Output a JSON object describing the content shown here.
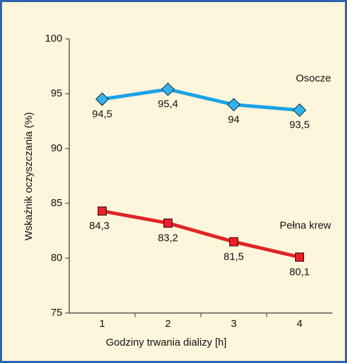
{
  "chart_data": {
    "type": "line",
    "x": [
      1,
      2,
      3,
      4
    ],
    "xlim": [
      0.5,
      4.5
    ],
    "xticks": [
      1,
      2,
      3,
      4
    ],
    "ylim": [
      75,
      100
    ],
    "yticks": [
      75,
      80,
      85,
      90,
      95,
      100
    ],
    "xlabel": "Godziny trwania dializy [h]",
    "ylabel": "Wskaźnik oczyszczania (%)",
    "series": [
      {
        "name": "Osocze",
        "color": "#1aa3e6",
        "marker": "diamond",
        "values": [
          94.5,
          95.4,
          94,
          93.5
        ],
        "value_labels": [
          "94,5",
          "95,4",
          "94",
          "93,5"
        ]
      },
      {
        "name": "Pełna krew",
        "color": "#e02424",
        "marker": "square",
        "values": [
          84.3,
          83.2,
          81.5,
          80.1
        ],
        "value_labels": [
          "84,3",
          "83,2",
          "81,5",
          "80,1"
        ]
      }
    ]
  }
}
